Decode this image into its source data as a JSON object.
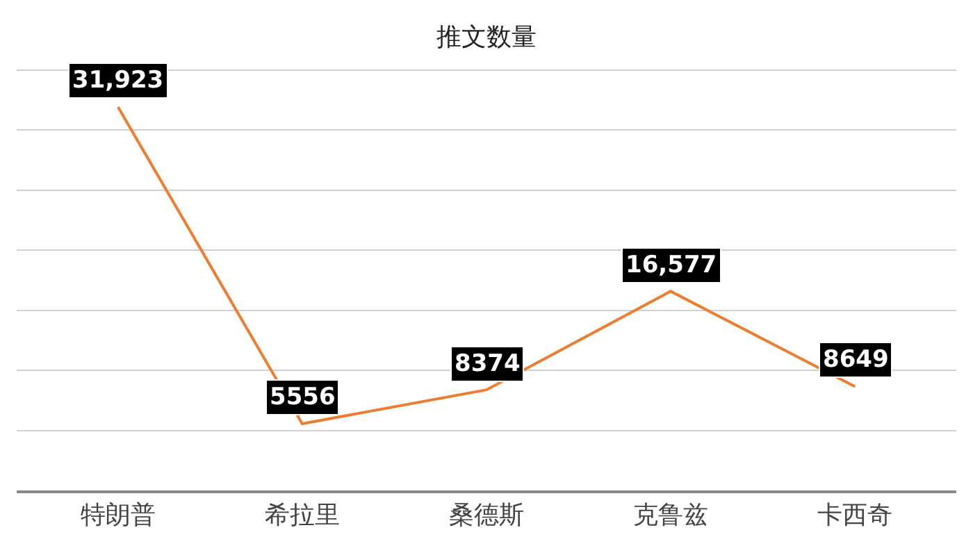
{
  "chart_data": {
    "type": "line",
    "title": "推文数量",
    "categories": [
      "特朗普",
      "希拉里",
      "桑德斯",
      "克鲁兹",
      "卡西奇"
    ],
    "series": [
      {
        "color": "#ed7d31",
        "values": [
          31923,
          5556,
          8374,
          16577,
          8649
        ],
        "value_labels": [
          "31,923",
          "5556",
          "8374",
          "16,577",
          "8649"
        ]
      }
    ],
    "grid": "y",
    "line_style": "solid",
    "tick_labels": "x"
  }
}
